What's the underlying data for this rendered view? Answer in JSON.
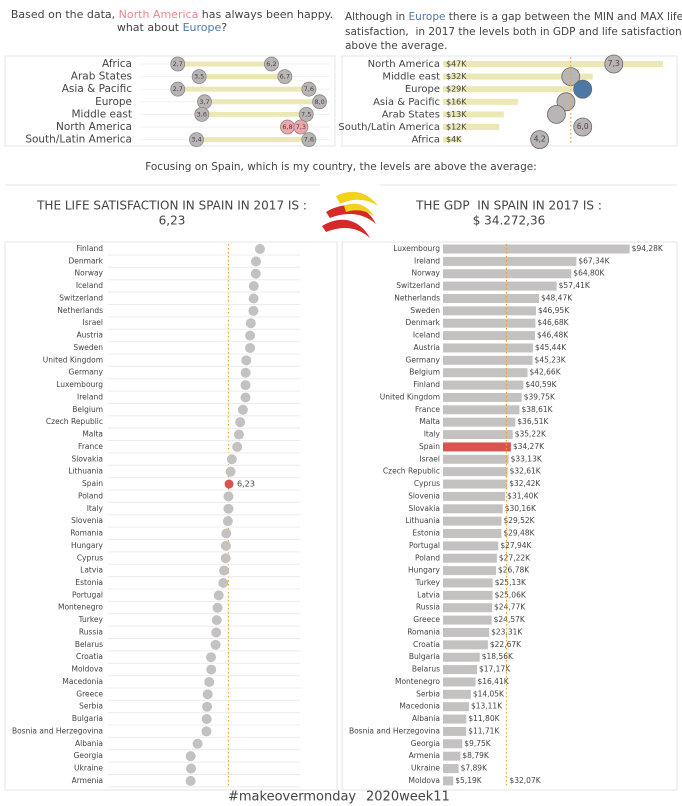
{
  "texts": {
    "intro_left": [
      [
        "Based on the data, ",
        "North America",
        " has always been happy."
      ],
      [
        "what about ",
        "Europe",
        "?"
      ]
    ],
    "intro_right": [
      [
        "Although in ",
        "Europe",
        " there is a gap between the MIN and MAX life"
      ],
      [
        "satisfaction,  in 2017 the levels both in GDP and life satisfaction are"
      ],
      [
        "above the average."
      ]
    ],
    "focus": "Focusing on Spain, which is my country, the levels are above the average:",
    "life_title": "THE LIFE SATISFACTION IN SPAIN IN 2017 IS :",
    "life_value": "6,23",
    "gdp_title": "THE GDP  IN SPAIN IN 2017 IS :",
    "gdp_value": "$ 34.272,36",
    "hashtag": "#makeovermonday",
    "week": "2020week11"
  },
  "chart_data": [
    {
      "type": "dumbbell",
      "categories": [
        "Africa",
        "Arab States",
        "Asia & Pacific",
        "Europe",
        "Middle east",
        "North America",
        "South/Latin America"
      ],
      "min": [
        2.7,
        3.5,
        2.7,
        3.7,
        3.6,
        6.8,
        3.4
      ],
      "min_labels": [
        "2,7",
        "3,5",
        "2,7",
        "3,7",
        "3,6",
        "6,8",
        "3,4"
      ],
      "max": [
        6.2,
        6.7,
        7.6,
        8.0,
        7.5,
        7.3,
        7.6
      ],
      "max_labels": [
        "6,2",
        "6,7",
        "7,6",
        "8,0",
        "7,5",
        "7,3",
        "7,6"
      ],
      "xlim": [
        2,
        8.5
      ],
      "color": "#b9b5b5",
      "range_color": "#ebe8b5",
      "highlight": "North America",
      "highlight_color": "#f2a5ab"
    },
    {
      "type": "bar_bubble",
      "categories": [
        "North America",
        "Middle east",
        "Europe",
        "Asia & Pacific",
        "Arab States",
        "South/Latin America",
        "Africa"
      ],
      "values": [
        47,
        32,
        29,
        16,
        13,
        12,
        4
      ],
      "value_labels": [
        "$47K",
        "$32K",
        "$29K",
        "$16K",
        "$13K",
        "$12K",
        "$4K"
      ],
      "xlim": [
        0,
        50
      ],
      "color": "#ebe8b5",
      "bubbles": [
        7.3,
        5.5,
        6.0,
        5.3,
        4.9,
        6.0,
        4.2
      ],
      "bubble_labels": [
        "7,3",
        null,
        null,
        null,
        null,
        "6,0",
        "4,2"
      ],
      "bubble_xlim": [
        3,
        8
      ],
      "bubble_color": "#b9b5b5",
      "highlight": "Europe",
      "highlight_color": "#4e79a7",
      "reference": 5.5,
      "reference_color": "#f0a030"
    },
    {
      "type": "dot",
      "categories": [
        "Finland",
        "Denmark",
        "Norway",
        "Iceland",
        "Switzerland",
        "Netherlands",
        "Israel",
        "Austria",
        "Sweden",
        "United Kingdom",
        "Germany",
        "Luxembourg",
        "Ireland",
        "Belgium",
        "Czech Republic",
        "Malta",
        "France",
        "Slovakia",
        "Lithuania",
        "Spain",
        "Poland",
        "Italy",
        "Slovenia",
        "Romania",
        "Hungary",
        "Cyprus",
        "Latvia",
        "Estonia",
        "Portugal",
        "Montenegro",
        "Turkey",
        "Russia",
        "Belarus",
        "Croatia",
        "Moldova",
        "Macedonia",
        "Greece",
        "Serbia",
        "Bulgaria",
        "Bosnia and Herzegovina",
        "Albania",
        "Georgia",
        "Ukraine",
        "Armenia"
      ],
      "values": [
        7.79,
        7.59,
        7.58,
        7.48,
        7.47,
        7.46,
        7.33,
        7.29,
        7.29,
        7.1,
        7.07,
        7.06,
        7.06,
        6.93,
        6.79,
        6.73,
        6.64,
        6.37,
        6.31,
        6.23,
        6.2,
        6.2,
        6.17,
        6.09,
        6.07,
        6.06,
        5.98,
        5.94,
        5.71,
        5.65,
        5.61,
        5.58,
        5.55,
        5.32,
        5.33,
        5.23,
        5.15,
        5.12,
        5.1,
        5.09,
        4.64,
        4.29,
        4.31,
        4.29
      ],
      "value_labels": [
        null,
        null,
        null,
        null,
        null,
        null,
        null,
        null,
        null,
        null,
        null,
        null,
        null,
        null,
        null,
        null,
        null,
        null,
        null,
        "6,23",
        null,
        null,
        null,
        null,
        null,
        null,
        null,
        null,
        null,
        null,
        null,
        null,
        null,
        null,
        null,
        null,
        null,
        null,
        null,
        null,
        null,
        null,
        null,
        null
      ],
      "xlim": [
        3.5,
        8.5
      ],
      "color": "#c4c1c1",
      "highlight": "Spain",
      "highlight_color": "#d9534f",
      "reference": 6.2,
      "reference_color": "#f0a030"
    },
    {
      "type": "hbar",
      "categories": [
        "Luxembourg",
        "Ireland",
        "Norway",
        "Switzerland",
        "Netherlands",
        "Sweden",
        "Denmark",
        "Iceland",
        "Austria",
        "Germany",
        "Belgium",
        "Finland",
        "United Kingdom",
        "France",
        "Malta",
        "Italy",
        "Spain",
        "Israel",
        "Czech Republic",
        "Cyprus",
        "Slovenia",
        "Slovakia",
        "Lithuania",
        "Estonia",
        "Portugal",
        "Poland",
        "Hungary",
        "Turkey",
        "Latvia",
        "Russia",
        "Greece",
        "Romania",
        "Croatia",
        "Bulgaria",
        "Belarus",
        "Montenegro",
        "Serbia",
        "Macedonia",
        "Albania",
        "Bosnia and Herzegovina",
        "Georgia",
        "Armenia",
        "Ukraine",
        "Moldova"
      ],
      "values": [
        94.28,
        67.34,
        64.8,
        57.41,
        48.47,
        46.95,
        46.68,
        46.48,
        45.44,
        45.23,
        42.66,
        40.59,
        39.75,
        38.61,
        36.51,
        35.22,
        34.27,
        33.13,
        32.61,
        32.42,
        31.4,
        30.16,
        29.52,
        29.48,
        27.94,
        27.22,
        26.78,
        25.13,
        25.06,
        24.77,
        24.57,
        23.31,
        22.67,
        18.56,
        17.17,
        16.41,
        14.05,
        13.11,
        11.8,
        11.71,
        9.75,
        8.79,
        7.89,
        5.19
      ],
      "value_labels": [
        "$94,28K",
        "$67,34K",
        "$64,80K",
        "$57,41K",
        "$48,47K",
        "$46,95K",
        "$46,68K",
        "$46,48K",
        "$45,44K",
        "$45,23K",
        "$42,66K",
        "$40,59K",
        "$39,75K",
        "$38,61K",
        "$36,51K",
        "$35,22K",
        "$34,27K",
        "$33,13K",
        "$32,61K",
        "$32,42K",
        "$31,40K",
        "$30,16K",
        "$29,52K",
        "$29,48K",
        "$27,94K",
        "$27,22K",
        "$26,78K",
        "$25,13K",
        "$25,06K",
        "$24,77K",
        "$24,57K",
        "$23,31K",
        "$22,67K",
        "$18,56K",
        "$17,17K",
        "$16,41K",
        "$14,05K",
        "$13,11K",
        "$11,80K",
        "$11,71K",
        "$9,75K",
        "$8,79K",
        "$7,89K",
        "$5,19K"
      ],
      "xlim": [
        0,
        100
      ],
      "color": "#c4c1c1",
      "highlight": "Spain",
      "highlight_color": "#d9534f",
      "reference": 32.07,
      "reference_label": "$32,07K",
      "reference_color": "#f0a030"
    }
  ]
}
